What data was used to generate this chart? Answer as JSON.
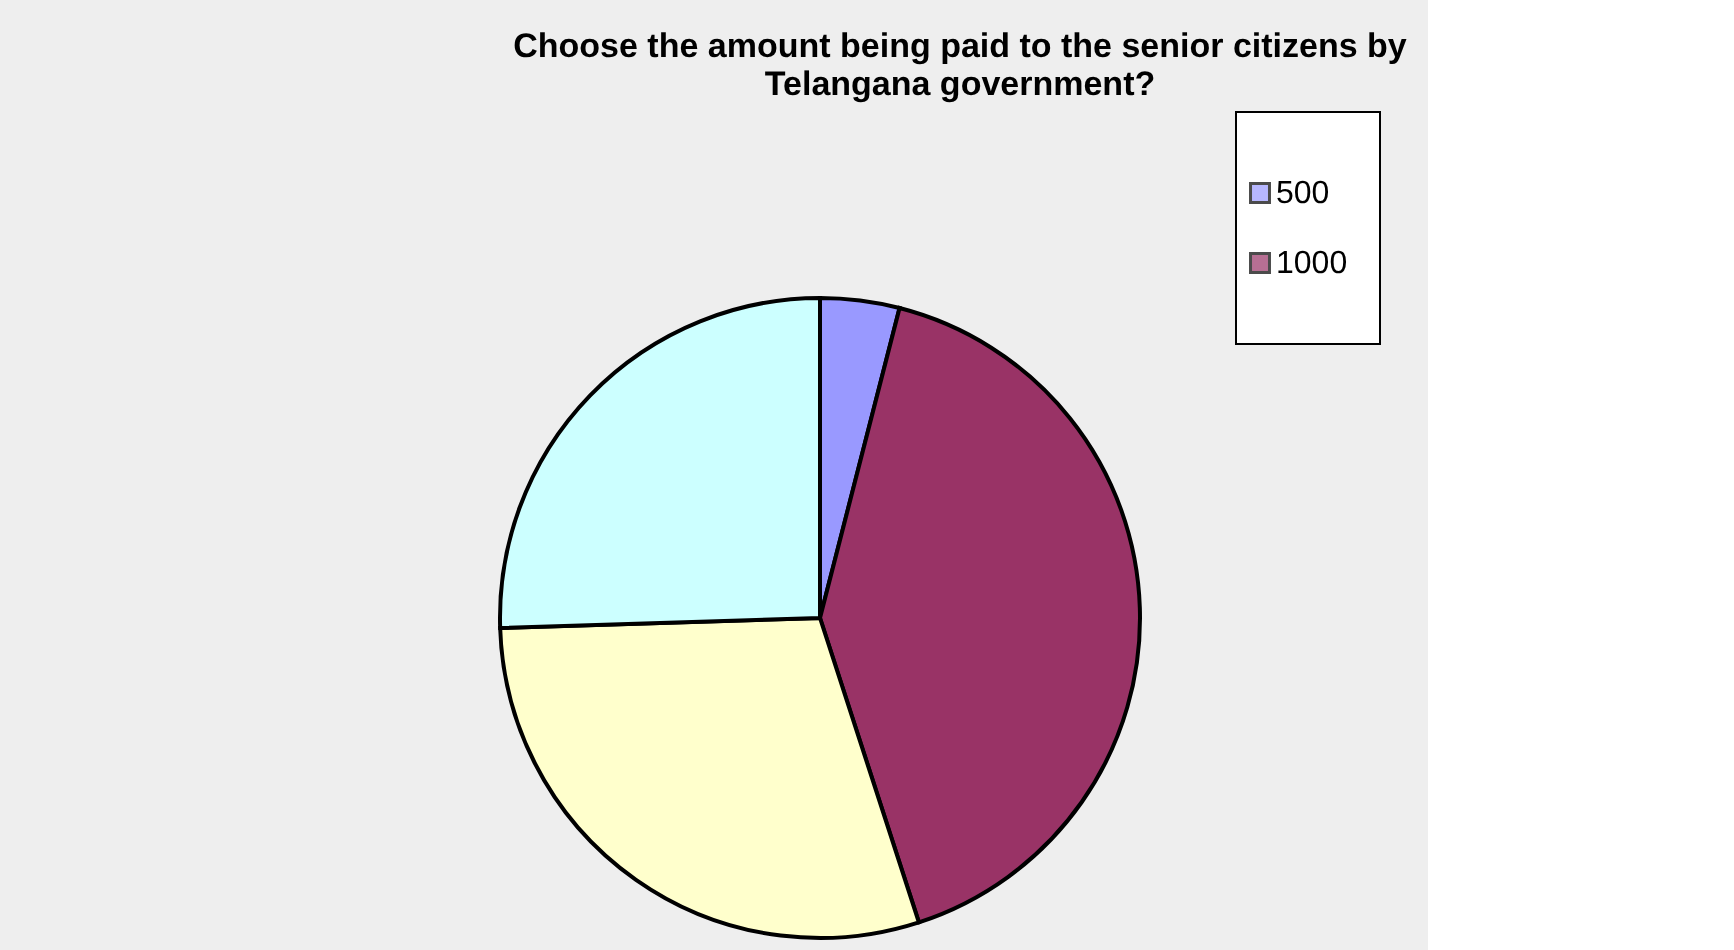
{
  "chart_data": {
    "type": "pie",
    "title": [
      "Choose the amount being paid to the senior citizens by",
      "Telangana government?"
    ],
    "categories": [
      "500",
      "1000",
      null,
      null
    ],
    "values": [
      4,
      41,
      29.5,
      25.5
    ],
    "colors": [
      "#9999ff",
      "#993366",
      "#ffffcc",
      "#ccffff"
    ],
    "legend": "right"
  }
}
